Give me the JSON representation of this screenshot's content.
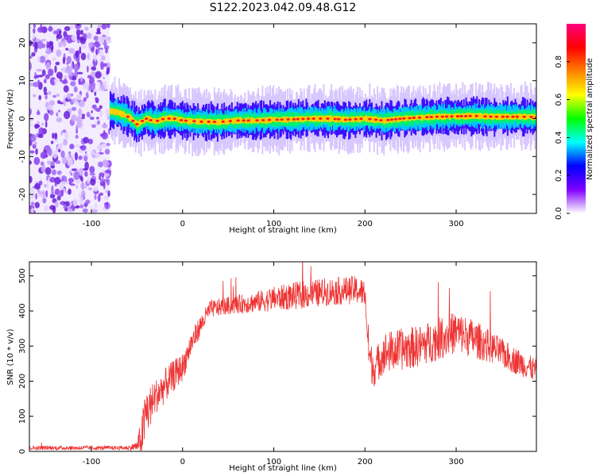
{
  "figure": {
    "title": "S122.2023.042.09.48.G12"
  },
  "chart_data": [
    {
      "type": "heatmap",
      "xlabel": "Height of straight line (km)",
      "ylabel": "Frequency (Hz)",
      "xlim": [
        -168,
        388
      ],
      "ylim": [
        -25,
        25
      ],
      "xticks": [
        -100,
        0,
        100,
        200,
        300
      ],
      "yticks": [
        -20,
        -10,
        0,
        10,
        20
      ],
      "noise_region_x": [
        -168,
        -80
      ],
      "ridge": {
        "x": [
          -80,
          -70,
          -60,
          -50,
          -40,
          -30,
          -20,
          -10,
          0,
          20,
          40,
          60,
          80,
          100,
          120,
          140,
          160,
          180,
          200,
          220,
          240,
          260,
          280,
          300,
          320,
          340,
          360,
          380,
          388
        ],
        "frequency": [
          2.0,
          1.5,
          0.5,
          -1.5,
          0.0,
          -0.8,
          0.0,
          0.0,
          -0.5,
          -0.8,
          -0.9,
          -0.5,
          -0.5,
          -0.3,
          -0.2,
          0.0,
          0.0,
          -0.3,
          0.0,
          -0.5,
          0.0,
          0.3,
          0.5,
          0.6,
          0.7,
          0.5,
          0.5,
          0.5,
          0.3
        ]
      },
      "colorbar": {
        "label": "Normalized spectral amplitude",
        "range": [
          0.0,
          1.0
        ],
        "ticks": [
          0.0,
          0.2,
          0.4,
          0.6,
          0.8
        ],
        "colors": [
          "#ffffff",
          "#8000ff",
          "#0000ff",
          "#00ffff",
          "#00ff00",
          "#ffff00",
          "#ff8000",
          "#ff0000",
          "#ff0080"
        ]
      }
    },
    {
      "type": "line",
      "xlabel": "Height of straight line (km)",
      "ylabel": "SNR (10 * v/v)",
      "xlim": [
        -168,
        388
      ],
      "ylim": [
        0,
        540
      ],
      "xticks": [
        -100,
        0,
        100,
        200,
        300
      ],
      "yticks": [
        0,
        100,
        200,
        300,
        400,
        500
      ],
      "series": [
        {
          "color": "#ee3333",
          "x": [
            -168,
            -100,
            -60,
            -50,
            -45,
            -40,
            -35,
            -30,
            -20,
            -10,
            0,
            10,
            20,
            30,
            50,
            80,
            100,
            130,
            160,
            190,
            200,
            203,
            206,
            210,
            220,
            240,
            260,
            280,
            300,
            320,
            340,
            360,
            380,
            388
          ],
          "y": [
            10,
            10,
            10,
            15,
            40,
            110,
            130,
            155,
            185,
            215,
            240,
            310,
            360,
            405,
            415,
            425,
            435,
            445,
            455,
            460,
            450,
            320,
            255,
            235,
            280,
            290,
            300,
            320,
            340,
            320,
            295,
            265,
            240,
            230
          ],
          "spread": [
            6,
            6,
            6,
            15,
            60,
            80,
            60,
            50,
            50,
            45,
            40,
            35,
            30,
            25,
            25,
            30,
            35,
            40,
            40,
            40,
            40,
            60,
            60,
            50,
            60,
            60,
            60,
            60,
            60,
            55,
            45,
            40,
            35,
            35
          ]
        }
      ]
    }
  ]
}
